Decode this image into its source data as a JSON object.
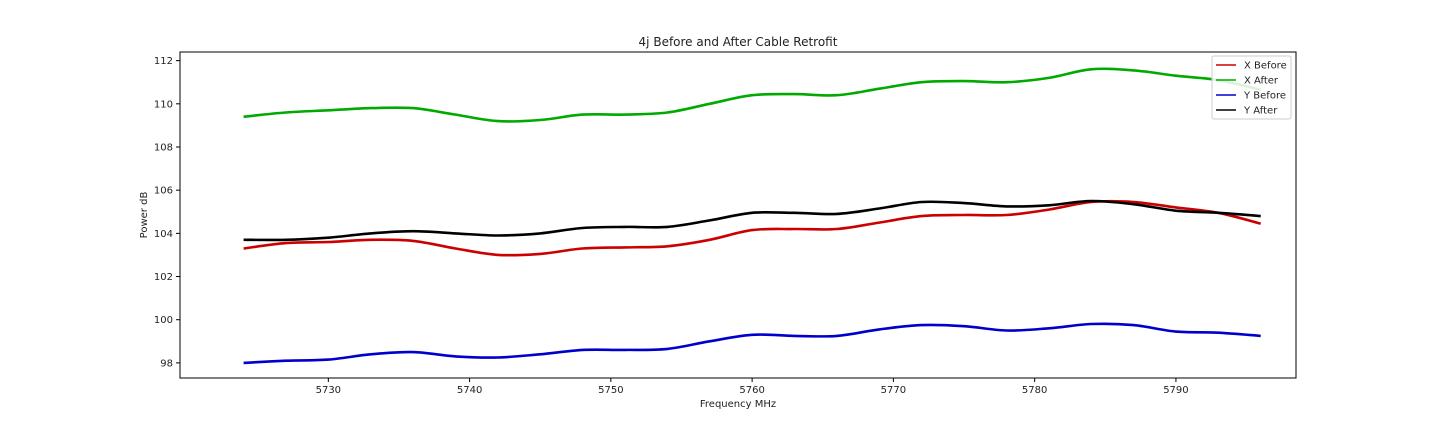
{
  "chart_data": {
    "type": "line",
    "title": "4j Before and After Cable Retrofit",
    "xlabel": "Frequency MHz",
    "ylabel": "Power dB",
    "xlim": [
      5719.5,
      5798.5
    ],
    "ylim": [
      97.3,
      112.4
    ],
    "xticks": [
      5730,
      5740,
      5750,
      5760,
      5770,
      5780,
      5790
    ],
    "yticks": [
      98,
      100,
      102,
      104,
      106,
      108,
      110,
      112
    ],
    "grid": false,
    "legend_position": "top-right",
    "x": [
      5724,
      5727,
      5730,
      5733,
      5736,
      5739,
      5742,
      5745,
      5748,
      5751,
      5754,
      5757,
      5760,
      5763,
      5766,
      5769,
      5772,
      5775,
      5778,
      5781,
      5784,
      5787,
      5790,
      5793,
      5796
    ],
    "series": [
      {
        "name": "X Before",
        "color": "#cc0000",
        "values": [
          103.3,
          103.55,
          103.6,
          103.7,
          103.65,
          103.3,
          103.0,
          103.05,
          103.3,
          103.35,
          103.4,
          103.7,
          104.15,
          104.2,
          104.2,
          104.5,
          104.8,
          104.85,
          104.85,
          105.1,
          105.45,
          105.45,
          105.2,
          104.95,
          104.45
        ]
      },
      {
        "name": "X After",
        "color": "#00aa00",
        "values": [
          109.4,
          109.6,
          109.7,
          109.8,
          109.8,
          109.5,
          109.2,
          109.25,
          109.5,
          109.5,
          109.6,
          110.0,
          110.4,
          110.45,
          110.4,
          110.7,
          111.0,
          111.05,
          111.0,
          111.2,
          111.6,
          111.55,
          111.3,
          111.1,
          110.65
        ]
      },
      {
        "name": "Y Before",
        "color": "#0000cc",
        "values": [
          98.0,
          98.1,
          98.15,
          98.4,
          98.5,
          98.3,
          98.25,
          98.4,
          98.6,
          98.6,
          98.65,
          99.0,
          99.3,
          99.25,
          99.25,
          99.55,
          99.75,
          99.7,
          99.5,
          99.6,
          99.8,
          99.75,
          99.45,
          99.4,
          99.25
        ]
      },
      {
        "name": "Y After",
        "color": "#000000",
        "values": [
          103.7,
          103.7,
          103.8,
          104.0,
          104.1,
          104.0,
          103.9,
          104.0,
          104.25,
          104.3,
          104.3,
          104.6,
          104.95,
          104.95,
          104.9,
          105.15,
          105.45,
          105.4,
          105.25,
          105.3,
          105.5,
          105.35,
          105.05,
          104.95,
          104.8
        ]
      }
    ]
  }
}
